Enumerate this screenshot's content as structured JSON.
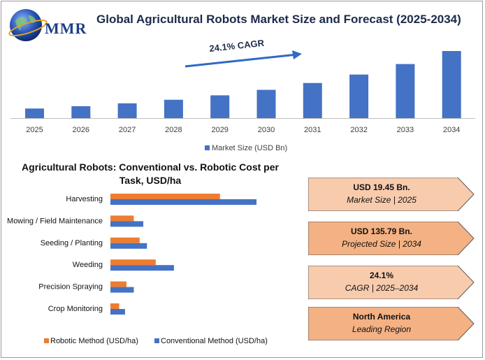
{
  "header": {
    "logo_text": "MMR",
    "title": "Global Agricultural Robots Market Size and Forecast (2025-2034)"
  },
  "colors": {
    "blue": "#4472C4",
    "orange": "#ED7D31",
    "card_fill": "#F8CBAD",
    "card_fill_2": "#F4B183",
    "title": "#1c2a4a"
  },
  "chart_data": [
    {
      "type": "bar",
      "categories": [
        "2025",
        "2026",
        "2027",
        "2028",
        "2029",
        "2030",
        "2031",
        "2032",
        "2033",
        "2034"
      ],
      "series": [
        {
          "name": "Market Size (USD Bn)",
          "values": [
            19.45,
            24.14,
            29.96,
            37.18,
            46.15,
            57.27,
            71.08,
            88.21,
            109.47,
            135.79
          ]
        }
      ],
      "annotation": "24.1% CAGR",
      "legend": "bottom-center",
      "grid": false
    },
    {
      "type": "bar",
      "orientation": "horizontal",
      "title": "Agricultural Robots: Conventional vs. Robotic Cost per Task, USD/ha",
      "categories": [
        "Harvesting",
        "Mowing / Field Maintenance",
        "Seeding / Planting",
        "Weeding",
        "Precision Spraying",
        "Crop Monitoring"
      ],
      "series": [
        {
          "name": "Robotic Method (USD/ha)",
          "values": [
            150,
            32,
            40,
            62,
            22,
            12
          ]
        },
        {
          "name": "Conventional Method (USD/ha)",
          "values": [
            200,
            45,
            50,
            87,
            32,
            20
          ]
        }
      ],
      "legend": "bottom",
      "grid": false
    }
  ],
  "cards": [
    {
      "value": "USD 19.45 Bn.",
      "desc": "Market Size | 2025"
    },
    {
      "value": "USD 135.79 Bn.",
      "desc": "Projected Size | 2034"
    },
    {
      "value": "24.1%",
      "desc": "CAGR | 2025–2034"
    },
    {
      "value": "North America",
      "desc": "Leading Region"
    }
  ]
}
